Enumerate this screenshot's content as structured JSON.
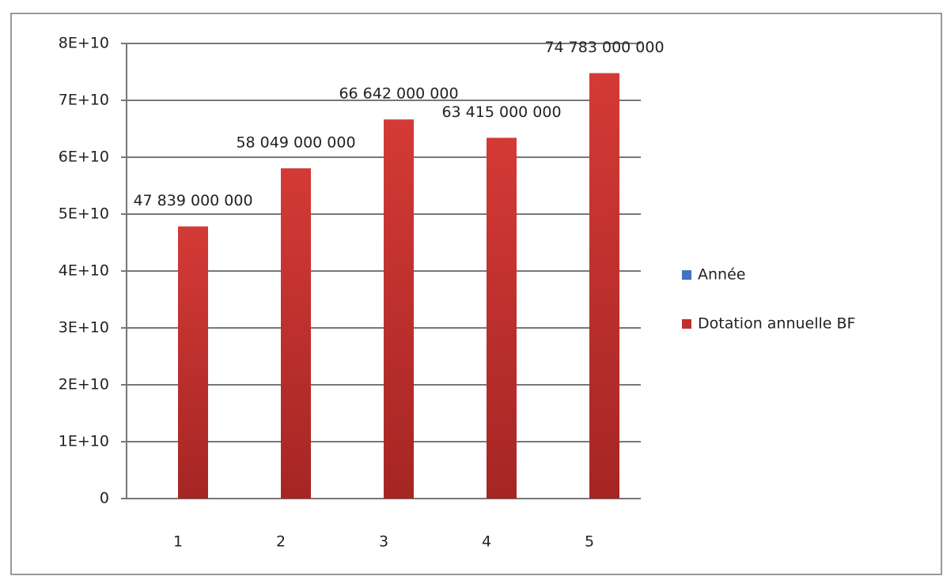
{
  "chart_data": {
    "type": "bar",
    "categories": [
      "1",
      "2",
      "3",
      "4",
      "5"
    ],
    "series": [
      {
        "name": "Année",
        "color": "#4472c4",
        "values": [
          0,
          0,
          0,
          0,
          0
        ]
      },
      {
        "name": "Dotation annuelle BF",
        "color": "#c0302e",
        "values": [
          47839000000,
          58049000000,
          66642000000,
          63415000000,
          74783000000
        ],
        "value_labels": [
          "47 839 000 000",
          "58 049 000 000",
          "66 642 000 000",
          "63 415 000 000",
          "74 783 000 000"
        ]
      }
    ],
    "ylim": [
      0,
      80000000000
    ],
    "yticks": [
      0,
      {
        "value": 10000000000,
        "label": "1E+10"
      },
      {
        "value": 20000000000,
        "label": "2E+10"
      },
      {
        "value": 30000000000,
        "label": "3E+10"
      },
      {
        "value": 40000000000,
        "label": "4E+10"
      },
      {
        "value": 50000000000,
        "label": "5E+10"
      },
      {
        "value": 60000000000,
        "label": "6E+10"
      },
      {
        "value": 70000000000,
        "label": "7E+10"
      },
      {
        "value": 80000000000,
        "label": "8E+10"
      }
    ],
    "grid": true,
    "legend": "right"
  }
}
